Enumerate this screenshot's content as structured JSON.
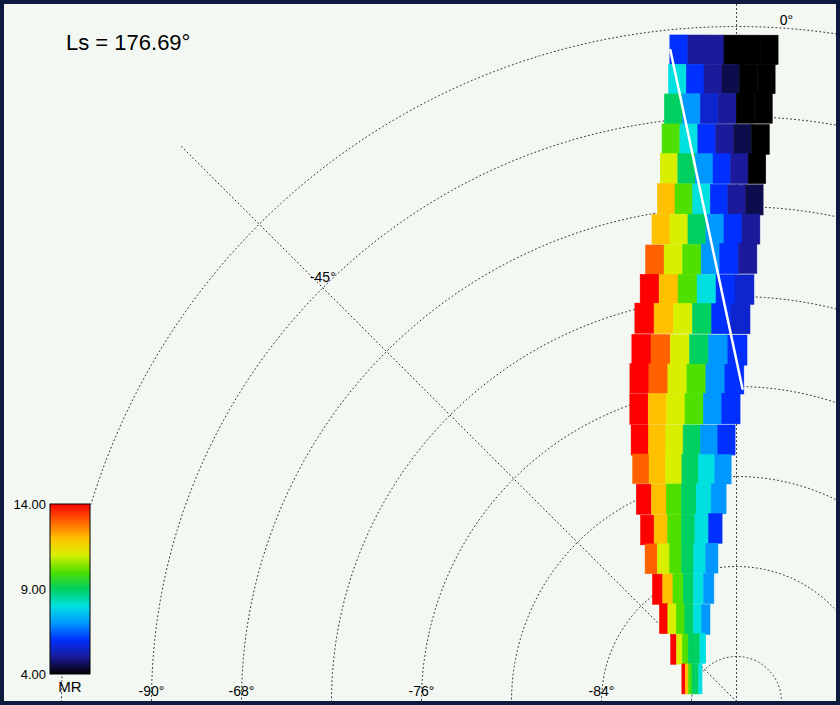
{
  "chart_data": {
    "type": "polar_swath_map",
    "title": "Ls = 176.69°",
    "grid": true,
    "lat_grid": [
      -60,
      -64,
      -68,
      -72,
      -76,
      -80,
      -84,
      -88
    ],
    "lat_labels": [
      {
        "value": -68,
        "label": "-68°"
      },
      {
        "value": -76,
        "label": "-76°"
      },
      {
        "value": -84,
        "label": "-84°"
      }
    ],
    "lon_grid": [
      0,
      -45,
      -90
    ],
    "lon_labels": [
      {
        "value": 0,
        "label": "0°"
      },
      {
        "value": -45,
        "label": "-45°"
      },
      {
        "value": -90,
        "label": "-90°"
      }
    ],
    "swath": {
      "rows": [
        {
          "lat_west": -60.9,
          "lon_west": -5.8,
          "lat_east": -61.0,
          "lon_east": 3.7,
          "mr": [
            6,
            5,
            5,
            4,
            4,
            4
          ]
        },
        {
          "lat_west": -62.2,
          "lon_west": -6.2,
          "lat_east": -62.3,
          "lon_east": 3.6,
          "mr": [
            8,
            6,
            5,
            4.5,
            4,
            4
          ]
        },
        {
          "lat_west": -63.5,
          "lon_west": -6.9,
          "lat_east": -63.6,
          "lon_east": 3.5,
          "mr": [
            9,
            7,
            5.5,
            5,
            4,
            4
          ]
        },
        {
          "lat_west": -64.8,
          "lon_west": -7.5,
          "lat_east": -65.0,
          "lon_east": 3.4,
          "mr": [
            10,
            8,
            6,
            5,
            4.5,
            4
          ]
        },
        {
          "lat_west": -66.1,
          "lon_west": -8.1,
          "lat_east": -66.3,
          "lon_east": 3.2,
          "mr": [
            11,
            9,
            7,
            6,
            5,
            4
          ]
        },
        {
          "lat_west": -67.4,
          "lon_west": -8.9,
          "lat_east": -67.7,
          "lon_east": 3.1,
          "mr": [
            12,
            10,
            8,
            6,
            5,
            4.5
          ]
        },
        {
          "lat_west": -68.7,
          "lon_west": -10.1,
          "lat_east": -69.0,
          "lon_east": 2.9,
          "mr": [
            12,
            11,
            9,
            7,
            6,
            5
          ]
        },
        {
          "lat_west": -70.0,
          "lon_west": -11.6,
          "lat_east": -70.3,
          "lon_east": 2.7,
          "mr": [
            13,
            11,
            10,
            7,
            6,
            5
          ]
        },
        {
          "lat_west": -71.2,
          "lon_west": -13.1,
          "lat_east": -71.7,
          "lon_east": 2.5,
          "mr": [
            14,
            12,
            10,
            8,
            6,
            5.5
          ]
        },
        {
          "lat_west": -72.4,
          "lon_west": -14.8,
          "lat_east": -73.0,
          "lon_east": 2.1,
          "mr": [
            14,
            12,
            11,
            9,
            6,
            5.5
          ]
        },
        {
          "lat_west": -73.7,
          "lon_west": -16.5,
          "lat_east": -74.4,
          "lon_east": 1.8,
          "mr": [
            14,
            13,
            11,
            9,
            7,
            6
          ]
        },
        {
          "lat_west": -74.9,
          "lon_west": -18.2,
          "lat_east": -75.7,
          "lon_east": 1.4,
          "mr": [
            14,
            13,
            11,
            10,
            7,
            6
          ]
        },
        {
          "lat_west": -76.2,
          "lon_west": -20.0,
          "lat_east": -77.0,
          "lon_east": 0.8,
          "mr": [
            14,
            12,
            11,
            10,
            7,
            6
          ]
        },
        {
          "lat_west": -77.5,
          "lon_west": -21.9,
          "lat_east": -78.4,
          "lon_east": -0.2,
          "mr": [
            14,
            12,
            11,
            9,
            7,
            6
          ]
        },
        {
          "lat_west": -78.7,
          "lon_west": -24.0,
          "lat_east": -79.7,
          "lon_east": -1.2,
          "mr": [
            13,
            12,
            11,
            9,
            8,
            7
          ]
        },
        {
          "lat_west": -80.0,
          "lon_west": -26.3,
          "lat_east": -81.0,
          "lon_east": -2.8,
          "mr": [
            14,
            12,
            10,
            9,
            8,
            7
          ]
        },
        {
          "lat_west": -81.3,
          "lon_west": -29.2,
          "lat_east": -82.3,
          "lon_east": -4.6,
          "mr": [
            14,
            12,
            10,
            9,
            8,
            6
          ]
        },
        {
          "lat_west": -82.5,
          "lon_west": -32.6,
          "lat_east": -83.6,
          "lon_east": -7.2,
          "mr": [
            13,
            11,
            10,
            9,
            8,
            7
          ]
        },
        {
          "lat_west": -83.8,
          "lon_west": -36.8,
          "lat_east": -84.9,
          "lon_east": -11.1,
          "mr": [
            14,
            12,
            10,
            9,
            8,
            7
          ]
        },
        {
          "lat_west": -85.0,
          "lon_west": -42.9,
          "lat_east": -86.2,
          "lon_east": -17.7,
          "mr": [
            14,
            11,
            10,
            9,
            8,
            7
          ]
        },
        {
          "lat_west": -86.3,
          "lon_west": -51.7,
          "lat_east": -87.3,
          "lon_east": -29.9,
          "mr": [
            14,
            11,
            10,
            9,
            9,
            8
          ]
        },
        {
          "lat_west": -87.4,
          "lon_west": -67.8,
          "lat_east": -88.2,
          "lon_east": -57.0,
          "mr": [
            14,
            12,
            10,
            9,
            9,
            8
          ]
        }
      ]
    },
    "track": {
      "lat": [
        -60.9,
        -76.1
      ],
      "lon": [
        -5.8,
        1.1
      ]
    },
    "colorbar": {
      "label": "MR",
      "range": [
        4,
        14
      ],
      "ticks": [
        {
          "value": 4,
          "label": "4.00"
        },
        {
          "value": 9,
          "label": "9.00"
        },
        {
          "value": 14,
          "label": "14.00"
        }
      ]
    }
  }
}
